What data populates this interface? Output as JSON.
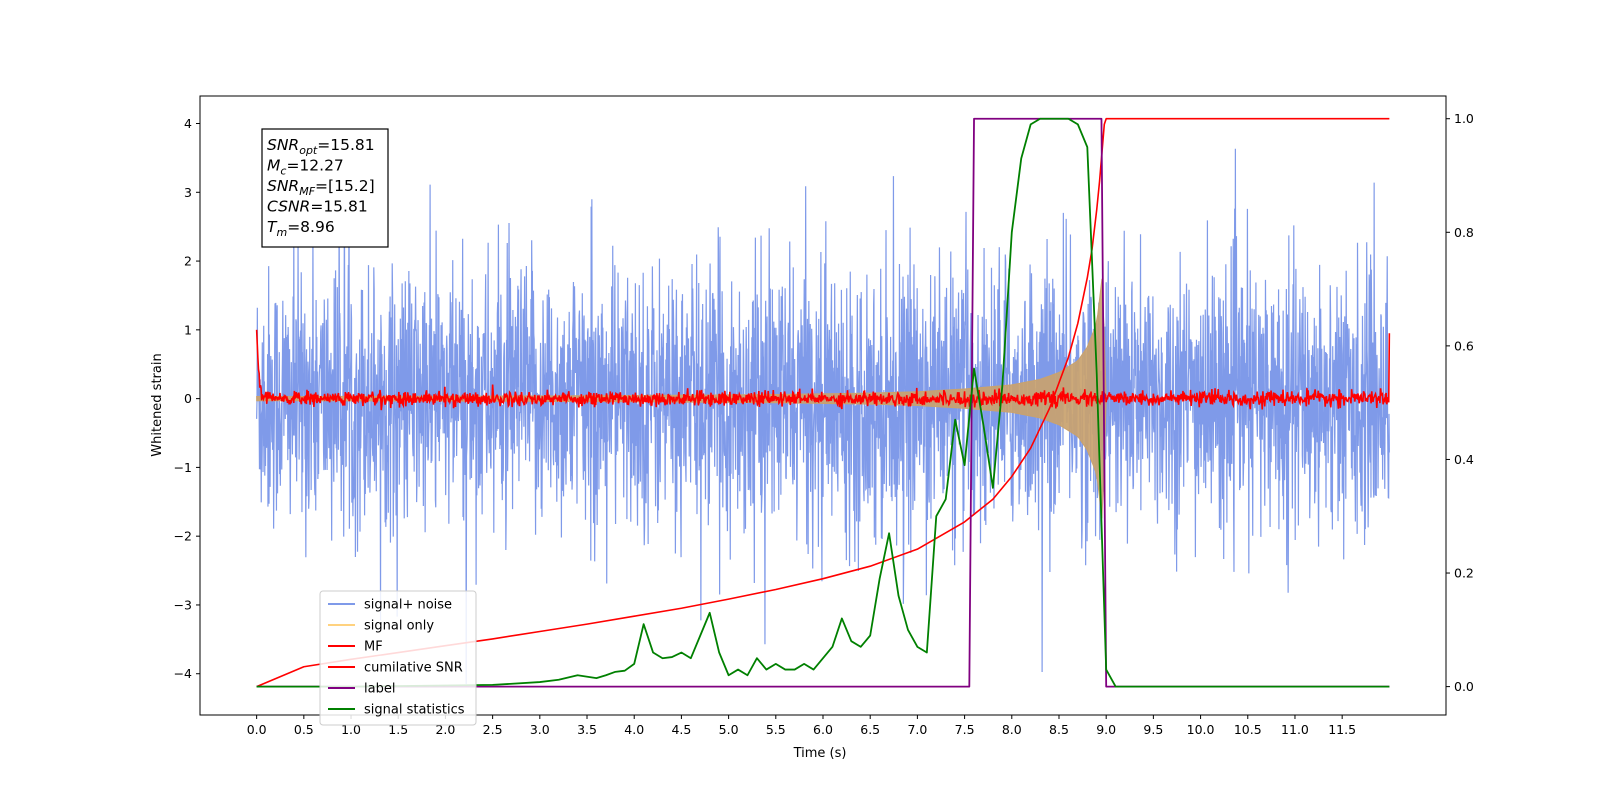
{
  "chart_data": {
    "type": "line",
    "xlabel": "Time (s)",
    "ylabel": "Whitened strain",
    "xlim": [
      -0.6,
      12.6
    ],
    "ylim": [
      -4.6,
      4.4
    ],
    "ylim_right": [
      -0.05,
      1.04
    ],
    "x_ticks": [
      0.0,
      0.5,
      1.0,
      1.5,
      2.0,
      2.5,
      3.0,
      3.5,
      4.0,
      4.5,
      5.0,
      5.5,
      6.0,
      6.5,
      7.0,
      7.5,
      8.0,
      8.5,
      9.0,
      9.5,
      10.0,
      10.5,
      11.0,
      11.5
    ],
    "x_tick_labels": [
      "0.0",
      "0.5",
      "1.0",
      "1.5",
      "2.0",
      "2.5",
      "3.0",
      "3.5",
      "4.0",
      "4.5",
      "5.0",
      "5.5",
      "6.0",
      "6.5",
      "7.0",
      "7.5",
      "8.0",
      "8.5",
      "9.0",
      "9.5",
      "10.0",
      "10.5",
      "11.0",
      "11.5"
    ],
    "y_ticks": [
      -4,
      -3,
      -2,
      -1,
      0,
      1,
      2,
      3,
      4
    ],
    "y_tick_labels": [
      "−4",
      "−3",
      "−2",
      "−1",
      "0",
      "1",
      "2",
      "3",
      "4"
    ],
    "y_ticks_right": [
      0.0,
      0.2,
      0.4,
      0.6,
      0.8,
      1.0
    ],
    "y_tick_labels_right": [
      "0.0",
      "0.2",
      "0.4",
      "0.6",
      "0.8",
      "1.0"
    ],
    "legend_position": "lower-left",
    "colors": {
      "signal_noise": "#7895e8",
      "signal_only": "#c9a26e",
      "mf": "#ff0000",
      "cumulative": "#ff0000",
      "label": "#800080",
      "statistics": "#008000"
    },
    "annotation": {
      "lines": [
        {
          "main": "SNR",
          "sub": "opt",
          "rest": "=15.81"
        },
        {
          "main": "M",
          "sub": "c",
          "rest": "=12.27"
        },
        {
          "main": "SNR",
          "sub": "MF",
          "rest": "=[15.2]"
        },
        {
          "main": "CSNR",
          "sub": "",
          "rest": "=15.81"
        },
        {
          "main": "T",
          "sub": "m",
          "rest": "=8.96"
        }
      ]
    },
    "series": [
      {
        "name": "signal+ noise",
        "color": "#7895e8",
        "kind": "noise_band",
        "x_range": [
          0.0,
          12.0
        ],
        "envelope_typical": 2.2,
        "extreme_max": 3.7,
        "extreme_min": -4.1
      },
      {
        "name": "signal only",
        "color": "#c9a26e",
        "kind": "chirp",
        "x_range": [
          0.0,
          9.0
        ],
        "amplitude_points": {
          "x": [
            0.0,
            2.0,
            4.0,
            5.5,
            6.5,
            7.0,
            7.5,
            8.0,
            8.3,
            8.5,
            8.7,
            8.8,
            8.9,
            8.96,
            9.0
          ],
          "y": [
            0.03,
            0.035,
            0.045,
            0.06,
            0.08,
            0.1,
            0.14,
            0.2,
            0.28,
            0.38,
            0.55,
            0.75,
            1.1,
            1.8,
            0.0
          ]
        }
      },
      {
        "name": "MF",
        "color": "#ff0000",
        "kind": "noisy_flat",
        "x_range": [
          0.0,
          12.0
        ],
        "start_value": 1.0,
        "end_value": 0.95,
        "noise_amplitude": 0.12
      },
      {
        "name": "cumilative SNR",
        "color": "#ff0000",
        "axis": "right",
        "x": [
          0.0,
          0.5,
          1.0,
          1.5,
          2.0,
          2.5,
          3.0,
          3.5,
          4.0,
          4.5,
          5.0,
          5.5,
          6.0,
          6.5,
          7.0,
          7.5,
          7.8,
          8.0,
          8.2,
          8.4,
          8.6,
          8.7,
          8.8,
          8.85,
          8.9,
          8.93,
          8.96,
          8.98,
          9.0,
          10.0,
          11.0,
          12.0
        ],
        "values": [
          0.0,
          0.035,
          0.048,
          0.06,
          0.072,
          0.084,
          0.097,
          0.11,
          0.124,
          0.138,
          0.154,
          0.171,
          0.19,
          0.212,
          0.242,
          0.29,
          0.33,
          0.37,
          0.42,
          0.49,
          0.58,
          0.64,
          0.72,
          0.77,
          0.84,
          0.89,
          0.95,
          0.99,
          1.0,
          1.0,
          1.0,
          1.0
        ]
      },
      {
        "name": "label",
        "color": "#800080",
        "axis": "right",
        "x": [
          0.0,
          7.55,
          7.6,
          8.95,
          9.0,
          12.0
        ],
        "values": [
          0.0,
          0.0,
          1.0,
          1.0,
          0.0,
          0.0
        ]
      },
      {
        "name": "signal statistics",
        "color": "#008000",
        "axis": "right",
        "x": [
          0.0,
          1.0,
          2.0,
          2.5,
          3.0,
          3.2,
          3.4,
          3.6,
          3.7,
          3.8,
          3.9,
          4.0,
          4.1,
          4.2,
          4.3,
          4.4,
          4.5,
          4.6,
          4.7,
          4.8,
          4.9,
          5.0,
          5.1,
          5.2,
          5.3,
          5.4,
          5.5,
          5.6,
          5.7,
          5.8,
          5.9,
          6.0,
          6.1,
          6.2,
          6.3,
          6.4,
          6.5,
          6.6,
          6.7,
          6.8,
          6.9,
          7.0,
          7.1,
          7.2,
          7.3,
          7.4,
          7.5,
          7.6,
          7.7,
          7.8,
          7.9,
          8.0,
          8.1,
          8.2,
          8.3,
          8.4,
          8.5,
          8.6,
          8.7,
          8.8,
          8.9,
          9.0,
          9.1,
          12.0
        ],
        "values": [
          0.0,
          0.0,
          0.002,
          0.003,
          0.008,
          0.012,
          0.02,
          0.015,
          0.02,
          0.026,
          0.028,
          0.04,
          0.11,
          0.06,
          0.05,
          0.052,
          0.06,
          0.05,
          0.09,
          0.13,
          0.06,
          0.02,
          0.03,
          0.02,
          0.05,
          0.03,
          0.04,
          0.03,
          0.03,
          0.04,
          0.03,
          0.05,
          0.07,
          0.12,
          0.08,
          0.07,
          0.09,
          0.19,
          0.27,
          0.16,
          0.1,
          0.07,
          0.06,
          0.3,
          0.33,
          0.47,
          0.39,
          0.56,
          0.46,
          0.35,
          0.53,
          0.8,
          0.93,
          0.99,
          1.0,
          1.0,
          1.0,
          1.0,
          0.99,
          0.95,
          0.55,
          0.03,
          0.0,
          0.0
        ]
      }
    ]
  }
}
